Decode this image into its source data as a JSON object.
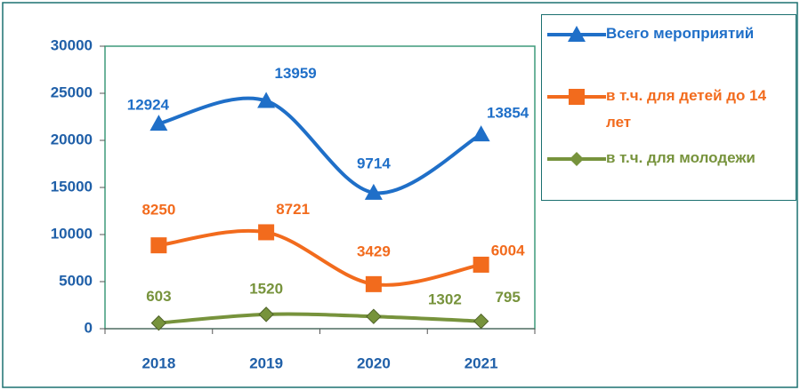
{
  "chart_data": {
    "type": "line",
    "stacked": true,
    "smooth": true,
    "categories": [
      "2018",
      "2019",
      "2020",
      "2021"
    ],
    "series": [
      {
        "name": "Всего мероприятий",
        "color": "#1f6fc8",
        "marker": "triangle",
        "values": [
          12924,
          13959,
          9714,
          13854
        ]
      },
      {
        "name": "в т.ч. для детей до 14 лет",
        "color": "#f26b1d",
        "marker": "square",
        "values": [
          8250,
          8721,
          3429,
          6004
        ]
      },
      {
        "name": "в т.ч. для молодежи",
        "color": "#77933c",
        "marker": "diamond",
        "values": [
          603,
          1520,
          1302,
          795
        ]
      }
    ],
    "ylim": [
      0,
      30000
    ],
    "yticks": [
      0,
      5000,
      10000,
      15000,
      20000,
      25000,
      30000
    ],
    "legend": "right"
  }
}
